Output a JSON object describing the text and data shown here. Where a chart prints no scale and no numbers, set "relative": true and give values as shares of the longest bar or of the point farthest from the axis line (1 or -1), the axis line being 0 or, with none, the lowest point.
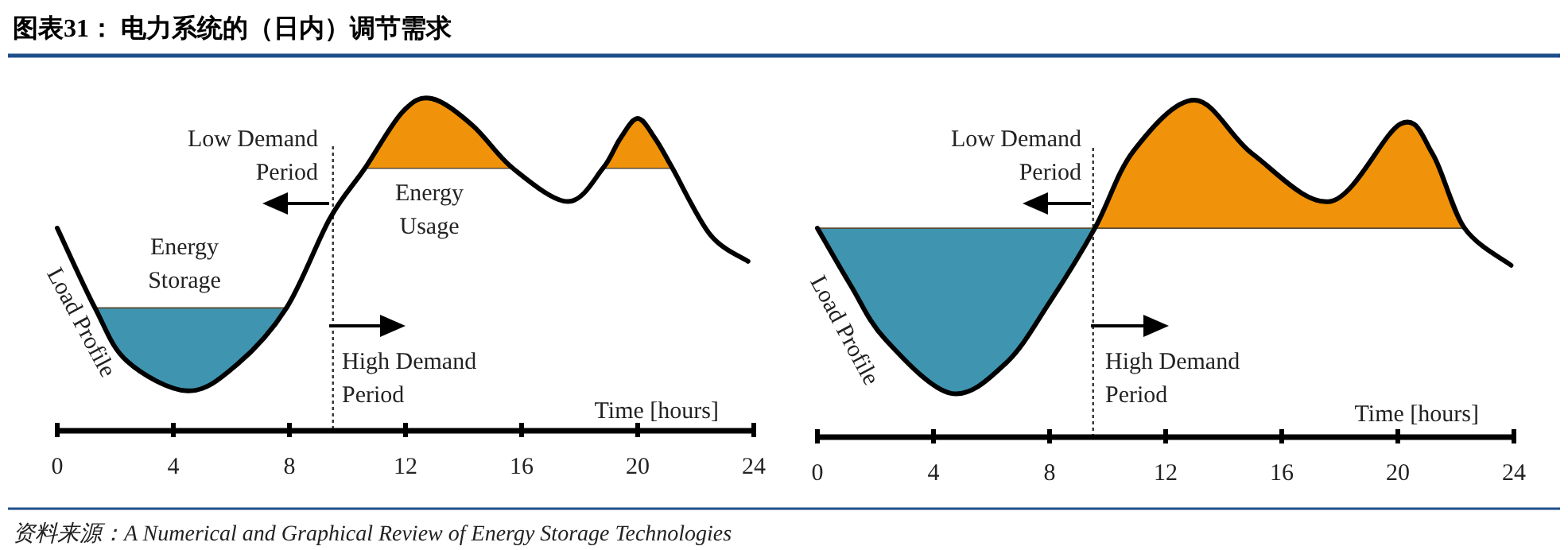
{
  "chart_data": [
    {
      "type": "line",
      "title": "图表31：  电力系统的（日内）调节需求",
      "xlabel": "Time [hours]",
      "relative": true,
      "xlim": [
        0,
        24
      ],
      "xticks": [
        0,
        4,
        8,
        12,
        16,
        20,
        24
      ],
      "series": [
        {
          "name": "Energy Storage",
          "type": "area",
          "color": "#3f95b0",
          "x": [
            1.3,
            2.4,
            4.5,
            6.2,
            7.9
          ],
          "values": [
            0.37,
            0.21,
            0.12,
            0.2,
            0.37
          ]
        },
        {
          "name": "Energy Usage",
          "type": "area",
          "color": "#f0930a",
          "x": [
            10.6,
            11.9,
            12.9,
            14.3,
            15.7,
            17.6,
            18.8,
            19.4,
            20.0,
            20.6,
            21.2
          ],
          "values": [
            0.79,
            0.96,
            1.0,
            0.92,
            0.79,
            null,
            0.79,
            0.88,
            0.94,
            0.88,
            0.79
          ]
        },
        {
          "name": "Load Profile",
          "color": "#000000",
          "x": [
            0,
            1.3,
            2.4,
            4.5,
            6.2,
            7.9,
            9.4,
            10.6,
            11.9,
            12.9,
            14.3,
            15.7,
            17.6,
            18.8,
            19.4,
            20.0,
            20.6,
            21.2,
            22.5,
            23.8
          ],
          "values": [
            0.61,
            0.37,
            0.21,
            0.12,
            0.2,
            0.37,
            0.64,
            0.79,
            0.96,
            1.0,
            0.92,
            0.79,
            0.69,
            0.79,
            0.88,
            0.94,
            0.88,
            0.79,
            0.59,
            0.51
          ]
        }
      ],
      "ref_lines": [
        {
          "axis": "x",
          "value": 9.5,
          "line_style": "dotted",
          "color": "#333333"
        }
      ],
      "annotations": [
        "Low Demand\nPeriod",
        "High Demand\nPeriod",
        "资料来源：A Numerical and Graphical Review of Energy Storage Technologies"
      ]
    },
    {
      "type": "line",
      "xlabel": "Time [hours]",
      "relative": true,
      "xlim": [
        0,
        24
      ],
      "xticks": [
        0,
        4,
        8,
        12,
        16,
        20,
        24
      ],
      "series": [
        {
          "type": "area",
          "color": "#3f95b0",
          "x": [
            0,
            1.15,
            2.34,
            4.6,
            6.5,
            8.0,
            9.56
          ],
          "values": [
            0.62,
            0.45,
            0.29,
            0.13,
            0.22,
            0.4,
            0.62
          ]
        },
        {
          "type": "area",
          "color": "#f0930a",
          "x": [
            9.56,
            10.9,
            13.0,
            15.0,
            17.7,
            20.1,
            21.2,
            22.3
          ],
          "values": [
            0.62,
            0.85,
            1.0,
            0.84,
            0.7,
            0.93,
            0.84,
            0.62
          ]
        },
        {
          "name": "Load Profile",
          "color": "#000000",
          "x": [
            0,
            1.15,
            2.34,
            4.6,
            6.5,
            8.0,
            9.56,
            10.9,
            13.0,
            15.0,
            17.7,
            20.1,
            21.2,
            22.3,
            23.9
          ],
          "values": [
            0.62,
            0.45,
            0.29,
            0.13,
            0.22,
            0.4,
            0.62,
            0.85,
            1.0,
            0.84,
            0.7,
            0.93,
            0.84,
            0.62,
            0.51
          ]
        }
      ],
      "ref_lines": [
        {
          "axis": "x",
          "value": 9.5,
          "line_style": "dotted",
          "color": "#333333"
        }
      ],
      "annotations": [
        "Low Demand\nPeriod",
        "High Demand\nPeriod"
      ]
    }
  ]
}
